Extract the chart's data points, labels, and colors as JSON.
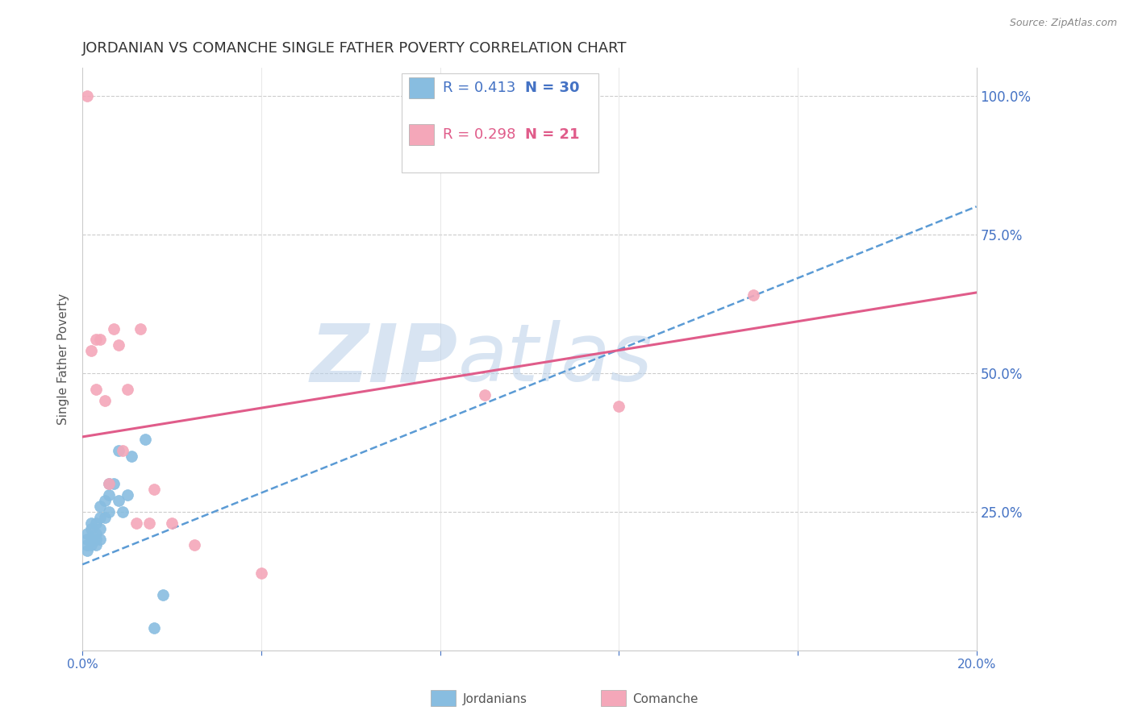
{
  "title": "JORDANIAN VS COMANCHE SINGLE FATHER POVERTY CORRELATION CHART",
  "source": "Source: ZipAtlas.com",
  "ylabel": "Single Father Poverty",
  "ylabel_right_labels": [
    "100.0%",
    "75.0%",
    "50.0%",
    "25.0%"
  ],
  "ylabel_right_values": [
    1.0,
    0.75,
    0.5,
    0.25
  ],
  "x_min": 0.0,
  "x_max": 0.2,
  "y_min": 0.0,
  "y_max": 1.05,
  "legend_label1": "Jordanians",
  "legend_label2": "Comanche",
  "r1": 0.413,
  "n1": 30,
  "r2": 0.298,
  "n2": 21,
  "color_blue": "#88bde0",
  "color_pink": "#f4a7b9",
  "color_blue_line": "#5b9bd5",
  "color_pink_line": "#e05c8a",
  "jordanians_x": [
    0.001,
    0.001,
    0.001,
    0.001,
    0.002,
    0.002,
    0.002,
    0.002,
    0.003,
    0.003,
    0.003,
    0.003,
    0.004,
    0.004,
    0.004,
    0.004,
    0.005,
    0.005,
    0.006,
    0.006,
    0.006,
    0.007,
    0.008,
    0.008,
    0.009,
    0.01,
    0.011,
    0.014,
    0.016,
    0.018
  ],
  "jordanians_y": [
    0.18,
    0.19,
    0.2,
    0.21,
    0.19,
    0.2,
    0.22,
    0.23,
    0.19,
    0.2,
    0.21,
    0.23,
    0.2,
    0.22,
    0.24,
    0.26,
    0.24,
    0.27,
    0.25,
    0.28,
    0.3,
    0.3,
    0.36,
    0.27,
    0.25,
    0.28,
    0.35,
    0.38,
    0.04,
    0.1
  ],
  "comanche_x": [
    0.001,
    0.002,
    0.003,
    0.003,
    0.004,
    0.005,
    0.006,
    0.007,
    0.008,
    0.009,
    0.01,
    0.012,
    0.013,
    0.015,
    0.016,
    0.02,
    0.025,
    0.04,
    0.09,
    0.12,
    0.15
  ],
  "comanche_y": [
    1.0,
    0.54,
    0.56,
    0.47,
    0.56,
    0.45,
    0.3,
    0.58,
    0.55,
    0.36,
    0.47,
    0.23,
    0.58,
    0.23,
    0.29,
    0.23,
    0.19,
    0.14,
    0.46,
    0.44,
    0.64
  ],
  "trendline_blue_x0": 0.0,
  "trendline_blue_y0": 0.155,
  "trendline_blue_x1": 0.2,
  "trendline_blue_y1": 0.8,
  "trendline_pink_x0": 0.0,
  "trendline_pink_y0": 0.385,
  "trendline_pink_x1": 0.2,
  "trendline_pink_y1": 0.645
}
